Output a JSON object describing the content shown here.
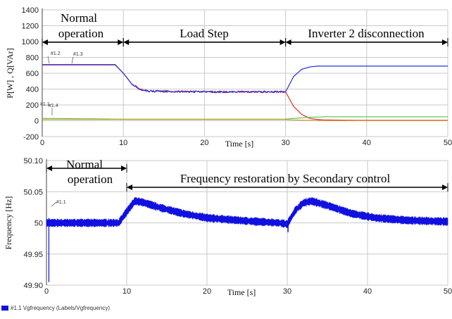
{
  "colors": {
    "red": "#e0302a",
    "blue": "#2030e0",
    "green": "#30c030",
    "orange": "#e09020",
    "grid": "#c8c8c8",
    "freq": "#1010e0"
  },
  "chart_data": [
    {
      "type": "line",
      "ylabel": "P[W] , Q[VAr]",
      "xlabel": "Time [s]",
      "xlim": [
        0,
        50
      ],
      "ylim": [
        -200,
        1400
      ],
      "xticks": [
        0,
        10,
        20,
        30,
        40,
        50
      ],
      "yticks": [
        -200,
        0,
        200,
        400,
        600,
        800,
        1000,
        1200,
        1400
      ],
      "grid": true,
      "annotations": [
        {
          "text_lines": [
            "Normal",
            "operation"
          ],
          "span": [
            0,
            10
          ]
        },
        {
          "text_lines": [
            "Load Step"
          ],
          "span": [
            10,
            30
          ]
        },
        {
          "text_lines": [
            "Inverter 2 disconnection"
          ],
          "span": [
            30,
            50
          ]
        }
      ],
      "trace_labels": [
        "#1.2",
        "#1.3",
        "#1.1",
        "#1.4"
      ],
      "series": [
        {
          "color": "red",
          "x": [
            0,
            9,
            10,
            11,
            12,
            13,
            15,
            20,
            25,
            30,
            31,
            32,
            33,
            34,
            35,
            40,
            45,
            50
          ],
          "values": [
            710,
            710,
            600,
            470,
            400,
            375,
            370,
            365,
            365,
            365,
            180,
            80,
            30,
            15,
            10,
            5,
            5,
            5
          ]
        },
        {
          "color": "blue",
          "x": [
            0,
            9,
            10,
            11,
            12,
            13,
            15,
            20,
            25,
            30,
            31,
            32,
            33,
            34,
            35,
            40,
            45,
            50
          ],
          "values": [
            705,
            705,
            600,
            470,
            400,
            375,
            370,
            365,
            365,
            365,
            560,
            650,
            680,
            690,
            690,
            690,
            690,
            690
          ]
        },
        {
          "color": "green",
          "x": [
            0,
            10,
            30,
            30.5,
            33,
            35,
            50
          ],
          "values": [
            30,
            20,
            20,
            25,
            45,
            50,
            50
          ]
        },
        {
          "color": "orange",
          "x": [
            0,
            10,
            30,
            32,
            35,
            50
          ],
          "values": [
            15,
            15,
            15,
            8,
            3,
            3
          ]
        }
      ]
    },
    {
      "type": "line",
      "ylabel": "Frequency [Hz]",
      "xlabel": "Time [s]",
      "xlim": [
        0,
        50
      ],
      "ylim": [
        49.9,
        50.1
      ],
      "xticks": [
        0,
        10,
        20,
        30,
        40,
        50
      ],
      "yticks": [
        49.9,
        49.95,
        50,
        50.05,
        50.1
      ],
      "grid": true,
      "annotations": [
        {
          "text_lines": [
            "Normal",
            "operation"
          ],
          "span": [
            0,
            10
          ]
        },
        {
          "text_lines": [
            "Frequency restoration by Secondary control"
          ],
          "span": [
            10,
            50
          ]
        }
      ],
      "trace_labels": [
        "#1.1"
      ],
      "series": [
        {
          "name": "#1.1 Vgfrequency (Labels/Vgfrequency)",
          "color": "freq",
          "x": [
            0,
            5,
            9,
            10,
            11,
            12,
            14,
            17,
            20,
            25,
            29,
            30,
            31,
            32,
            33,
            35,
            38,
            41,
            45,
            50
          ],
          "values": [
            50.0,
            50.0,
            50.0,
            50.018,
            50.035,
            50.033,
            50.025,
            50.015,
            50.008,
            50.003,
            50.0,
            49.998,
            50.02,
            50.032,
            50.035,
            50.028,
            50.015,
            50.008,
            50.004,
            50.002
          ]
        }
      ]
    }
  ]
}
